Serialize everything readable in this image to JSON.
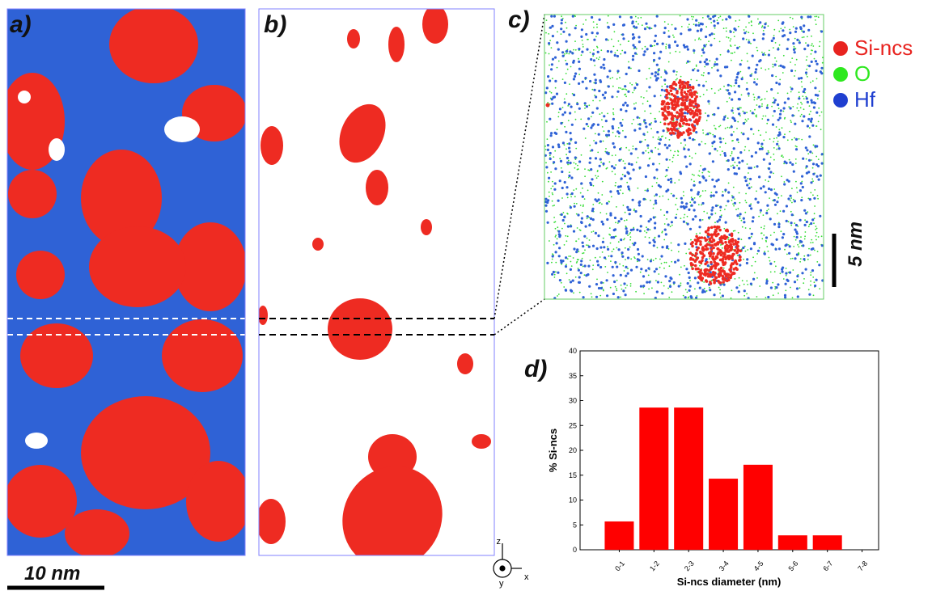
{
  "panels": {
    "a": "a)",
    "b": "b)",
    "c": "c)",
    "d": "d)"
  },
  "scale_bars": {
    "a": "10 nm",
    "c": "5 nm"
  },
  "axes_triad": {
    "x": "x",
    "y": "y",
    "z": "z"
  },
  "legend": [
    {
      "label": "Si-ncs",
      "color": "#e8231f"
    },
    {
      "label": "O",
      "color": "#2ee81f"
    },
    {
      "label": "Hf",
      "color": "#1f3fd0"
    }
  ],
  "colors": {
    "si": "#ee2b22",
    "hf": "#2f62d6",
    "o": "#33dd33",
    "bar": "#ff0000"
  },
  "chart_data": {
    "type": "bar",
    "categories": [
      "0-1",
      "1-2",
      "2-3",
      "3-4",
      "4-5",
      "5-6",
      "6-7",
      "7-8"
    ],
    "values": [
      5.7,
      28.6,
      28.6,
      14.3,
      17.1,
      2.9,
      2.9,
      0
    ],
    "xlabel": "Si-ncs diameter (nm)",
    "ylabel": "% Si-ncs",
    "ylim": [
      0,
      40
    ],
    "yticks": [
      0,
      5,
      10,
      15,
      20,
      25,
      30,
      35,
      40
    ],
    "grid": false
  }
}
